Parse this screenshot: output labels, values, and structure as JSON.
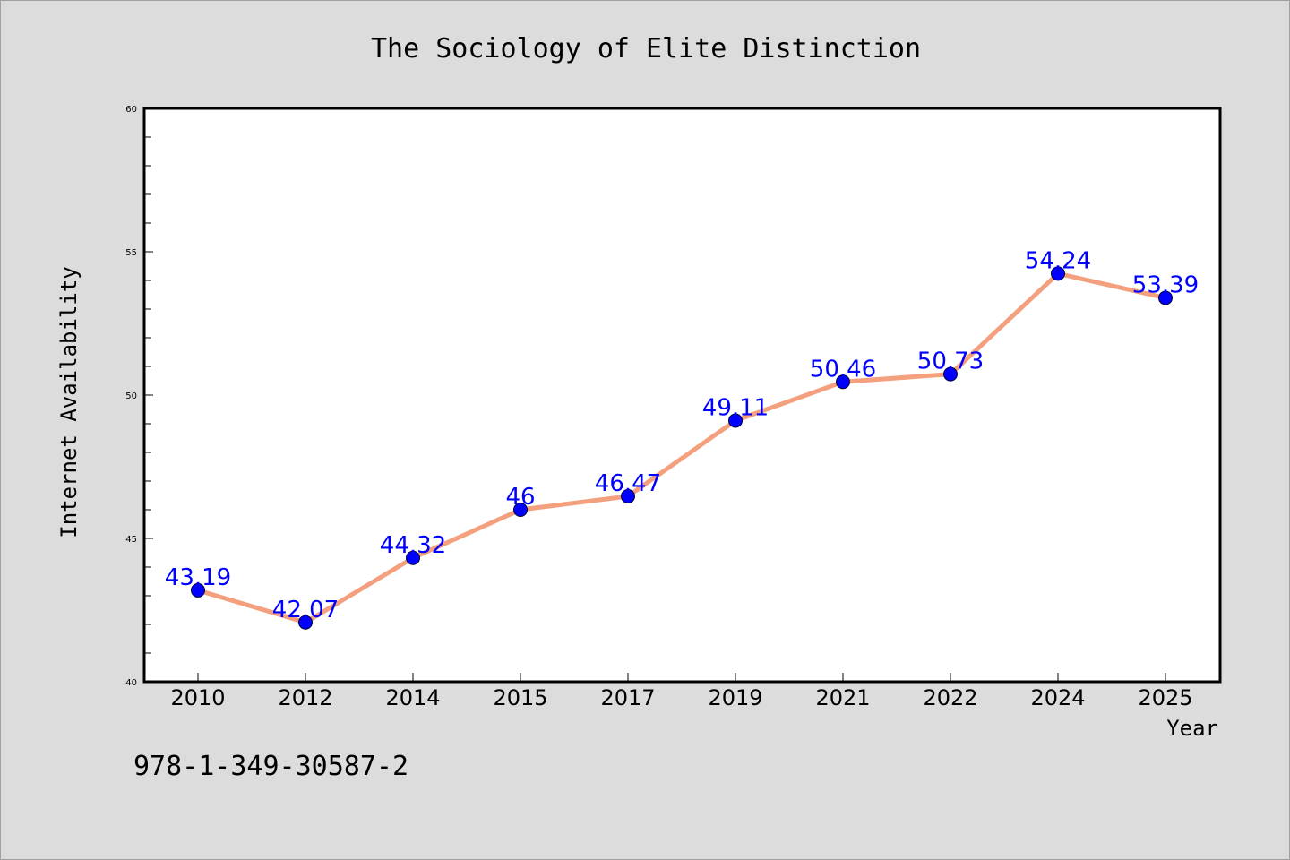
{
  "chart_data": {
    "type": "line",
    "title": "The Sociology of Elite Distinction",
    "xlabel": "Year",
    "ylabel": "Internet Availability",
    "categories": [
      "2010",
      "2012",
      "2014",
      "2015",
      "2017",
      "2019",
      "2021",
      "2022",
      "2024",
      "2025"
    ],
    "values": [
      43.19,
      42.07,
      44.32,
      46,
      46.47,
      49.11,
      50.46,
      50.73,
      54.24,
      53.39
    ],
    "data_labels": [
      "43.19",
      "42.07",
      "44.32",
      "46",
      "46.47",
      "49.11",
      "50.46",
      "50.73",
      "54.24",
      "53.39"
    ],
    "ylim": [
      40,
      60
    ],
    "yticks": [
      40,
      45,
      50,
      55,
      60
    ],
    "grid": false,
    "legend": "none",
    "line_color": "#f4a07e",
    "marker_color": "#0000ff"
  },
  "annotation": "978-1-349-30587-2"
}
